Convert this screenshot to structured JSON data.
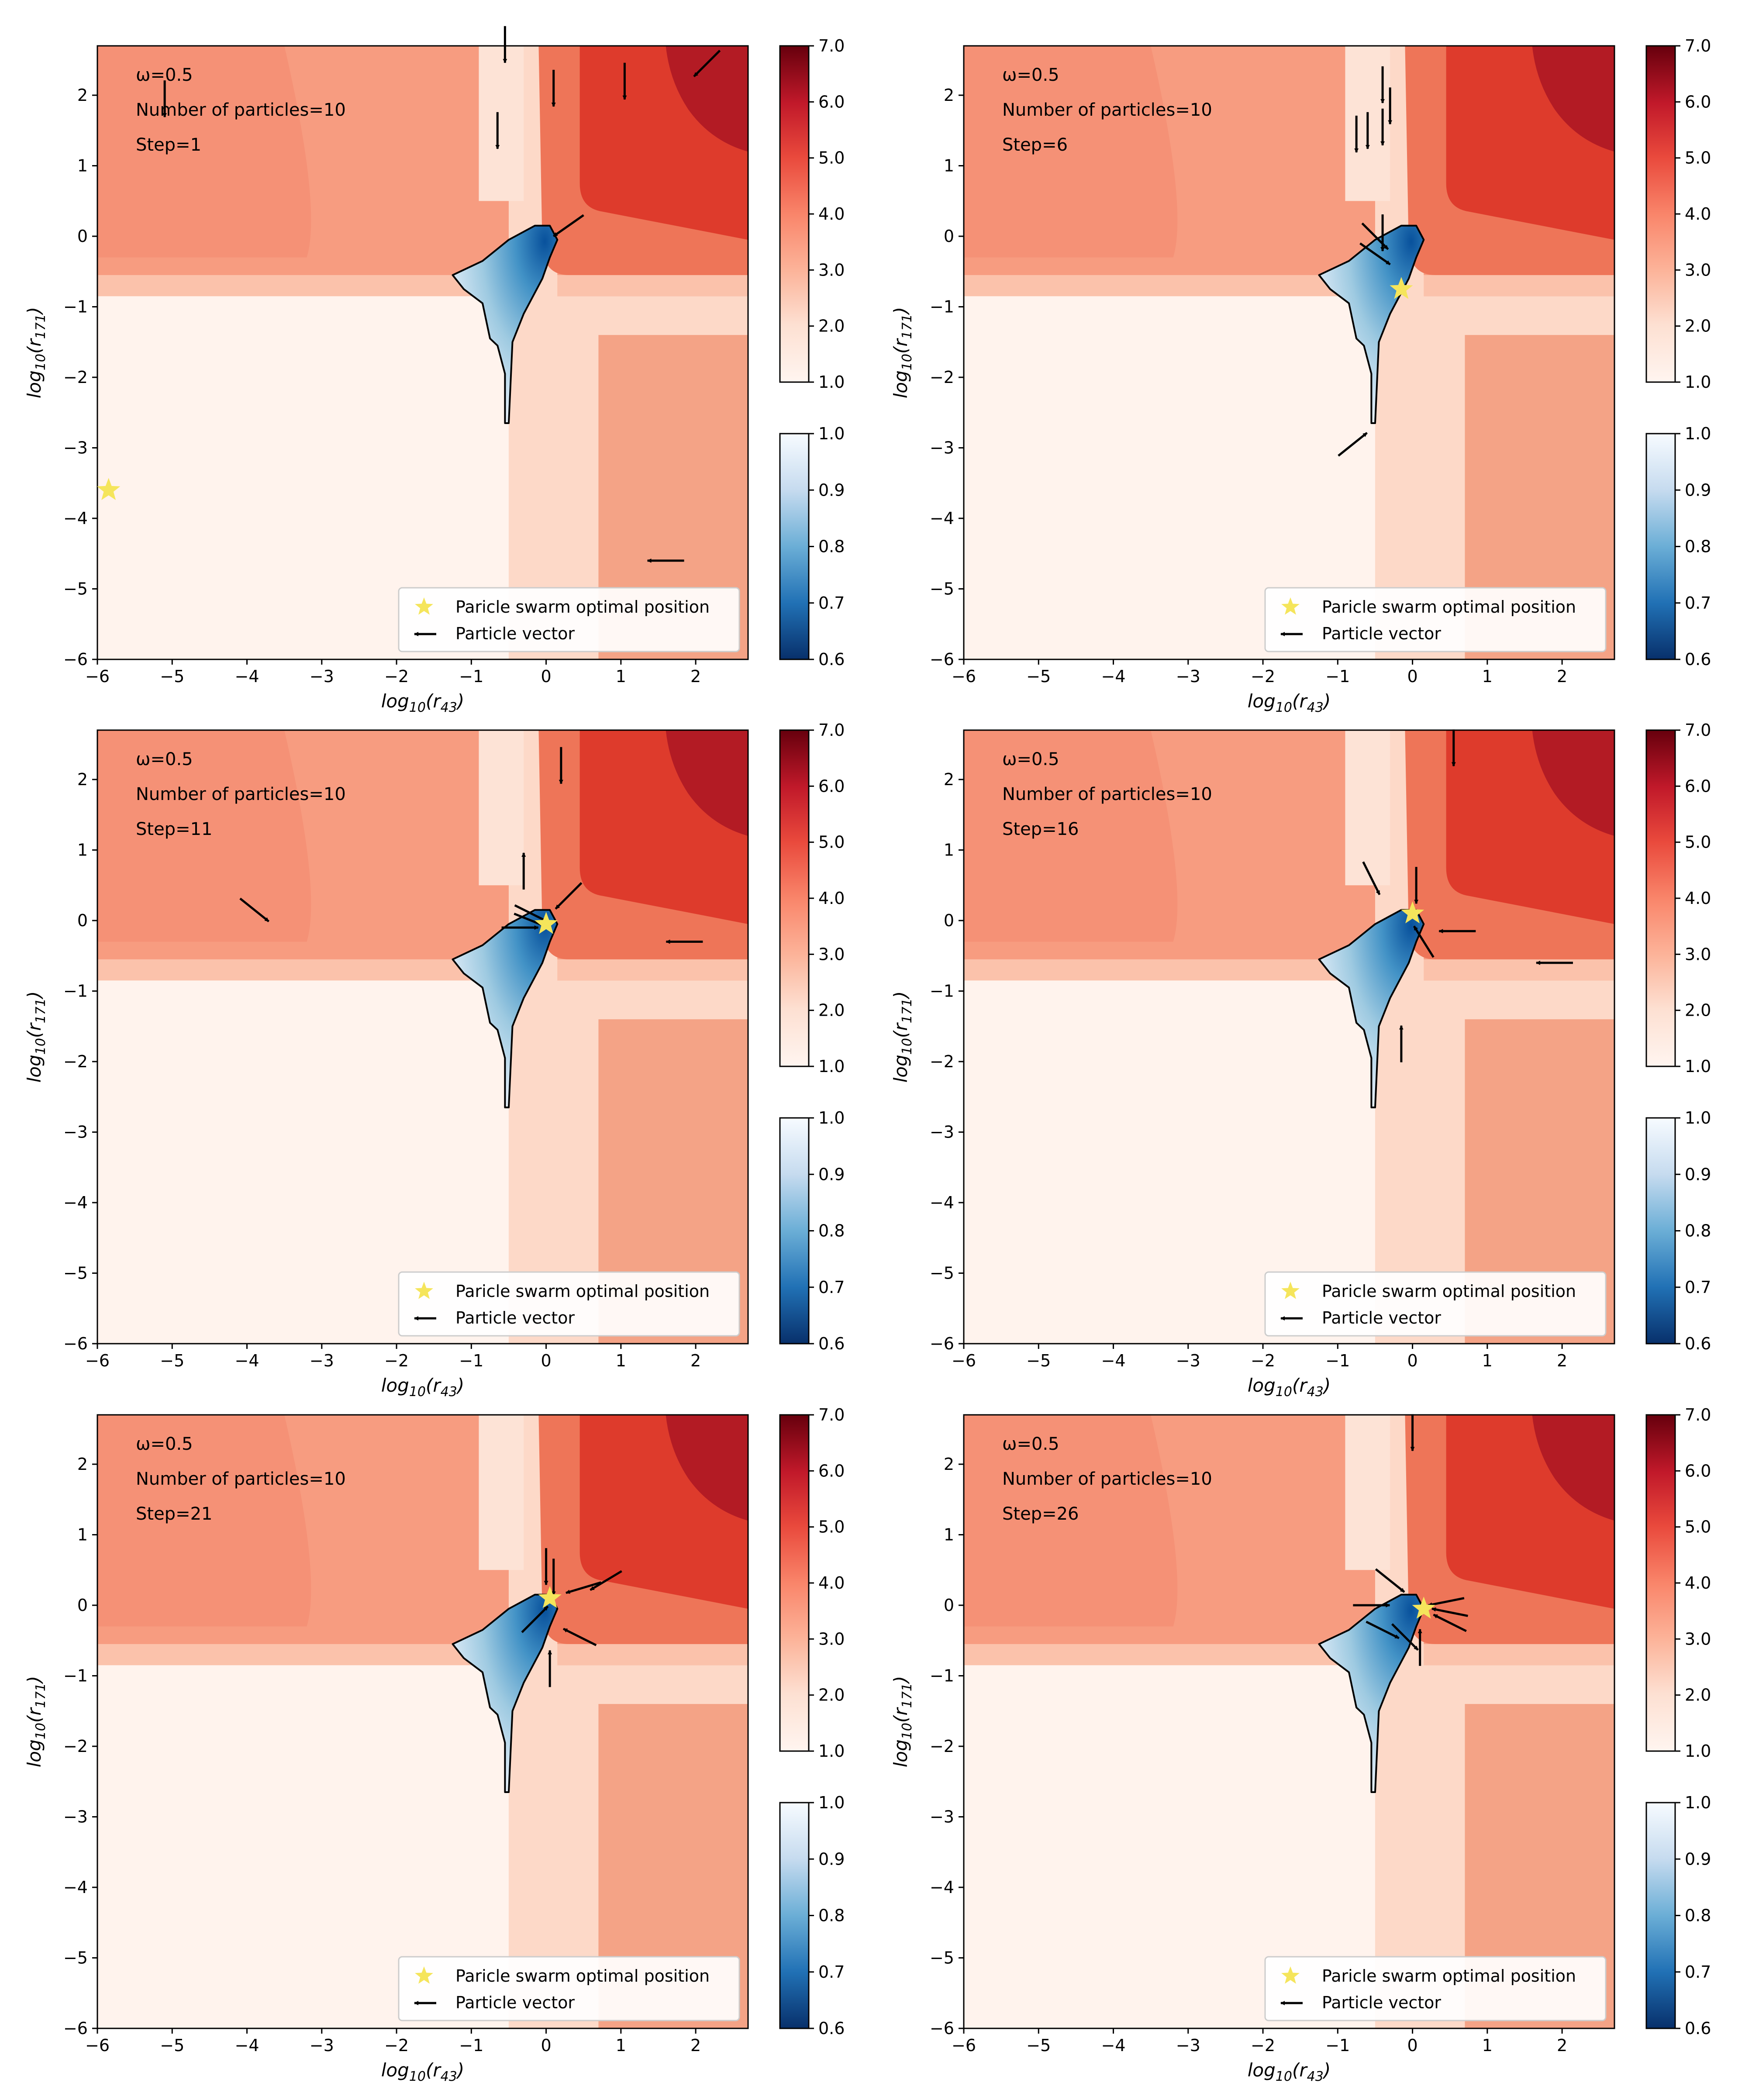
{
  "chart_data": [
    {
      "type": "heatmap",
      "panel": "step-1",
      "xlabel": "log10(r43)",
      "ylabel": "log10(r171)",
      "xlim": [
        -6,
        2.7
      ],
      "ylim": [
        -6,
        2.7
      ],
      "xticks": [
        -6,
        -5,
        -4,
        -3,
        -2,
        -1,
        0,
        1,
        2
      ],
      "yticks": [
        -6,
        -5,
        -4,
        -3,
        -2,
        -1,
        0,
        1,
        2
      ],
      "annotations": [
        "ω=0.5",
        "Number of particles=10",
        "Step=1"
      ],
      "colorbars": [
        {
          "name": "red",
          "range": [
            1.0,
            7.0
          ],
          "ticks": [
            "1.0",
            "2.0",
            "3.0",
            "4.0",
            "5.0",
            "6.0",
            "7.0"
          ]
        },
        {
          "name": "blue",
          "range": [
            0.6,
            1.0
          ],
          "ticks": [
            "0.6",
            "0.7",
            "0.8",
            "0.9",
            "1.0"
          ]
        }
      ],
      "legend": {
        "position": "bottom-right",
        "entries": [
          "Paricle swarm optimal position",
          "Particle vector"
        ]
      },
      "optimal_position": [
        -5.85,
        -3.6
      ],
      "particle_vectors": [
        [
          -5.1,
          1.95,
          0,
          -1
        ],
        [
          -0.65,
          1.5,
          0,
          -1
        ],
        [
          0.1,
          2.1,
          0,
          -1
        ],
        [
          1.05,
          2.2,
          0,
          -1
        ],
        [
          2.15,
          2.45,
          -1,
          -1
        ],
        [
          0.3,
          0.15,
          -1,
          -0.7
        ],
        [
          1.6,
          -4.6,
          -1,
          0
        ],
        [
          -0.55,
          2.72,
          0,
          -1
        ]
      ]
    },
    {
      "type": "heatmap",
      "panel": "step-6",
      "xlabel": "log10(r43)",
      "ylabel": "log10(r171)",
      "xlim": [
        -6,
        2.7
      ],
      "ylim": [
        -6,
        2.7
      ],
      "xticks": [
        -6,
        -5,
        -4,
        -3,
        -2,
        -1,
        0,
        1,
        2
      ],
      "yticks": [
        -6,
        -5,
        -4,
        -3,
        -2,
        -1,
        0,
        1,
        2
      ],
      "annotations": [
        "ω=0.5",
        "Number of particles=10",
        "Step=6"
      ],
      "colorbars": [
        {
          "name": "red",
          "range": [
            1.0,
            7.0
          ],
          "ticks": [
            "1.0",
            "2.0",
            "3.0",
            "4.0",
            "5.0",
            "6.0",
            "7.0"
          ]
        },
        {
          "name": "blue",
          "range": [
            0.6,
            1.0
          ],
          "ticks": [
            "0.6",
            "0.7",
            "0.8",
            "0.9",
            "1.0"
          ]
        }
      ],
      "legend": {
        "position": "bottom-right",
        "entries": [
          "Paricle swarm optimal position",
          "Particle vector"
        ]
      },
      "optimal_position": [
        -0.15,
        -0.75
      ],
      "particle_vectors": [
        [
          -0.4,
          2.15,
          0,
          -1
        ],
        [
          -0.3,
          1.85,
          0,
          -1
        ],
        [
          -0.6,
          1.5,
          0,
          -1
        ],
        [
          -0.75,
          1.45,
          0,
          -1
        ],
        [
          -0.4,
          1.55,
          0,
          -1
        ],
        [
          -0.5,
          0.0,
          1,
          -1
        ],
        [
          -0.5,
          -0.25,
          1,
          -0.7
        ],
        [
          -0.8,
          -2.95,
          1,
          0.8
        ],
        [
          -0.4,
          0.05,
          0,
          -1
        ]
      ]
    },
    {
      "type": "heatmap",
      "panel": "step-11",
      "xlabel": "log10(r43)",
      "ylabel": "log10(r171)",
      "xlim": [
        -6,
        2.7
      ],
      "ylim": [
        -6,
        2.7
      ],
      "xticks": [
        -6,
        -5,
        -4,
        -3,
        -2,
        -1,
        0,
        1,
        2
      ],
      "yticks": [
        -6,
        -5,
        -4,
        -3,
        -2,
        -1,
        0,
        1,
        2
      ],
      "annotations": [
        "ω=0.5",
        "Number of particles=10",
        "Step=11"
      ],
      "colorbars": [
        {
          "name": "red",
          "range": [
            1.0,
            7.0
          ],
          "ticks": [
            "1.0",
            "2.0",
            "3.0",
            "4.0",
            "5.0",
            "6.0",
            "7.0"
          ]
        },
        {
          "name": "blue",
          "range": [
            0.6,
            1.0
          ],
          "ticks": [
            "0.6",
            "0.7",
            "0.8",
            "0.9",
            "1.0"
          ]
        }
      ],
      "legend": {
        "position": "bottom-right",
        "entries": [
          "Paricle swarm optimal position",
          "Particle vector"
        ]
      },
      "optimal_position": [
        0.0,
        -0.05
      ],
      "particle_vectors": [
        [
          0.2,
          2.2,
          0,
          -1
        ],
        [
          -0.3,
          0.7,
          0,
          1
        ],
        [
          0.3,
          0.35,
          -1,
          -1
        ],
        [
          -3.9,
          0.15,
          1,
          -0.8
        ],
        [
          1.85,
          -0.3,
          -1,
          0
        ],
        [
          -0.2,
          0.0,
          1,
          -0.4
        ],
        [
          -0.35,
          -0.1,
          1,
          0
        ],
        [
          -0.2,
          0.1,
          1,
          -0.5
        ]
      ]
    },
    {
      "type": "heatmap",
      "panel": "step-16",
      "xlabel": "log10(r43)",
      "ylabel": "log10(r171)",
      "xlim": [
        -6,
        2.7
      ],
      "ylim": [
        -6,
        2.7
      ],
      "xticks": [
        -6,
        -5,
        -4,
        -3,
        -2,
        -1,
        0,
        1,
        2
      ],
      "yticks": [
        -6,
        -5,
        -4,
        -3,
        -2,
        -1,
        0,
        1,
        2
      ],
      "annotations": [
        "ω=0.5",
        "Number of particles=10",
        "Step=16"
      ],
      "colorbars": [
        {
          "name": "red",
          "range": [
            1.0,
            7.0
          ],
          "ticks": [
            "1.0",
            "2.0",
            "3.0",
            "4.0",
            "5.0",
            "6.0",
            "7.0"
          ]
        },
        {
          "name": "blue",
          "range": [
            0.6,
            1.0
          ],
          "ticks": [
            "0.6",
            "0.7",
            "0.8",
            "0.9",
            "1.0"
          ]
        }
      ],
      "legend": {
        "position": "bottom-right",
        "entries": [
          "Paricle swarm optimal position",
          "Particle vector"
        ]
      },
      "optimal_position": [
        0.0,
        0.1
      ],
      "particle_vectors": [
        [
          0.55,
          2.45,
          0,
          -1
        ],
        [
          -0.55,
          0.6,
          0.5,
          -1
        ],
        [
          0.05,
          0.5,
          0,
          -1
        ],
        [
          0.6,
          -0.15,
          -1,
          0
        ],
        [
          1.9,
          -0.6,
          -1,
          0
        ],
        [
          -0.15,
          -1.75,
          0,
          1
        ],
        [
          0.15,
          -0.3,
          -0.5,
          0.8
        ]
      ]
    },
    {
      "type": "heatmap",
      "panel": "step-21",
      "xlabel": "log10(r43)",
      "ylabel": "log10(r171)",
      "xlim": [
        -6,
        2.7
      ],
      "ylim": [
        -6,
        2.7
      ],
      "xticks": [
        -6,
        -5,
        -4,
        -3,
        -2,
        -1,
        0,
        1,
        2
      ],
      "yticks": [
        -6,
        -5,
        -4,
        -3,
        -2,
        -1,
        0,
        1,
        2
      ],
      "annotations": [
        "ω=0.5",
        "Number of particles=10",
        "Step=21"
      ],
      "colorbars": [
        {
          "name": "red",
          "range": [
            1.0,
            7.0
          ],
          "ticks": [
            "1.0",
            "2.0",
            "3.0",
            "4.0",
            "5.0",
            "6.0",
            "7.0"
          ]
        },
        {
          "name": "blue",
          "range": [
            0.6,
            1.0
          ],
          "ticks": [
            "0.6",
            "0.7",
            "0.8",
            "0.9",
            "1.0"
          ]
        }
      ],
      "legend": {
        "position": "bottom-right",
        "entries": [
          "Paricle swarm optimal position",
          "Particle vector"
        ]
      },
      "optimal_position": [
        0.05,
        0.1
      ],
      "particle_vectors": [
        [
          0.0,
          0.55,
          0,
          -1
        ],
        [
          0.8,
          0.35,
          -1,
          -0.6
        ],
        [
          0.5,
          0.25,
          -1,
          -0.3
        ],
        [
          0.45,
          -0.45,
          -1,
          0.5
        ],
        [
          0.05,
          -0.9,
          0,
          1
        ],
        [
          -0.15,
          -0.2,
          0.8,
          0.8
        ],
        [
          0.1,
          0.4,
          0,
          -1
        ]
      ]
    },
    {
      "type": "heatmap",
      "panel": "step-26",
      "xlabel": "log10(r43)",
      "ylabel": "log10(r171)",
      "xlim": [
        -6,
        2.7
      ],
      "ylim": [
        -6,
        2.7
      ],
      "xticks": [
        -6,
        -5,
        -4,
        -3,
        -2,
        -1,
        0,
        1,
        2
      ],
      "yticks": [
        -6,
        -5,
        -4,
        -3,
        -2,
        -1,
        0,
        1,
        2
      ],
      "annotations": [
        "ω=0.5",
        "Number of particles=10",
        "Step=26"
      ],
      "colorbars": [
        {
          "name": "red",
          "range": [
            1.0,
            7.0
          ],
          "ticks": [
            "1.0",
            "2.0",
            "3.0",
            "4.0",
            "5.0",
            "6.0",
            "7.0"
          ]
        },
        {
          "name": "blue",
          "range": [
            0.6,
            1.0
          ],
          "ticks": [
            "0.6",
            "0.7",
            "0.8",
            "0.9",
            "1.0"
          ]
        }
      ],
      "legend": {
        "position": "bottom-right",
        "entries": [
          "Paricle swarm optimal position",
          "Particle vector"
        ]
      },
      "optimal_position": [
        0.15,
        -0.05
      ],
      "particle_vectors": [
        [
          0.0,
          2.45,
          0,
          -1
        ],
        [
          -0.3,
          0.35,
          1,
          -0.8
        ],
        [
          -0.55,
          0.0,
          1,
          0
        ],
        [
          -0.4,
          -0.35,
          1,
          -0.5
        ],
        [
          -0.1,
          -0.45,
          0.8,
          -0.8
        ],
        [
          0.1,
          -0.6,
          0,
          1
        ],
        [
          0.5,
          -0.1,
          -1,
          0.2
        ],
        [
          0.5,
          -0.25,
          -1,
          0.5
        ],
        [
          0.45,
          0.05,
          -1,
          -0.2
        ]
      ]
    }
  ]
}
